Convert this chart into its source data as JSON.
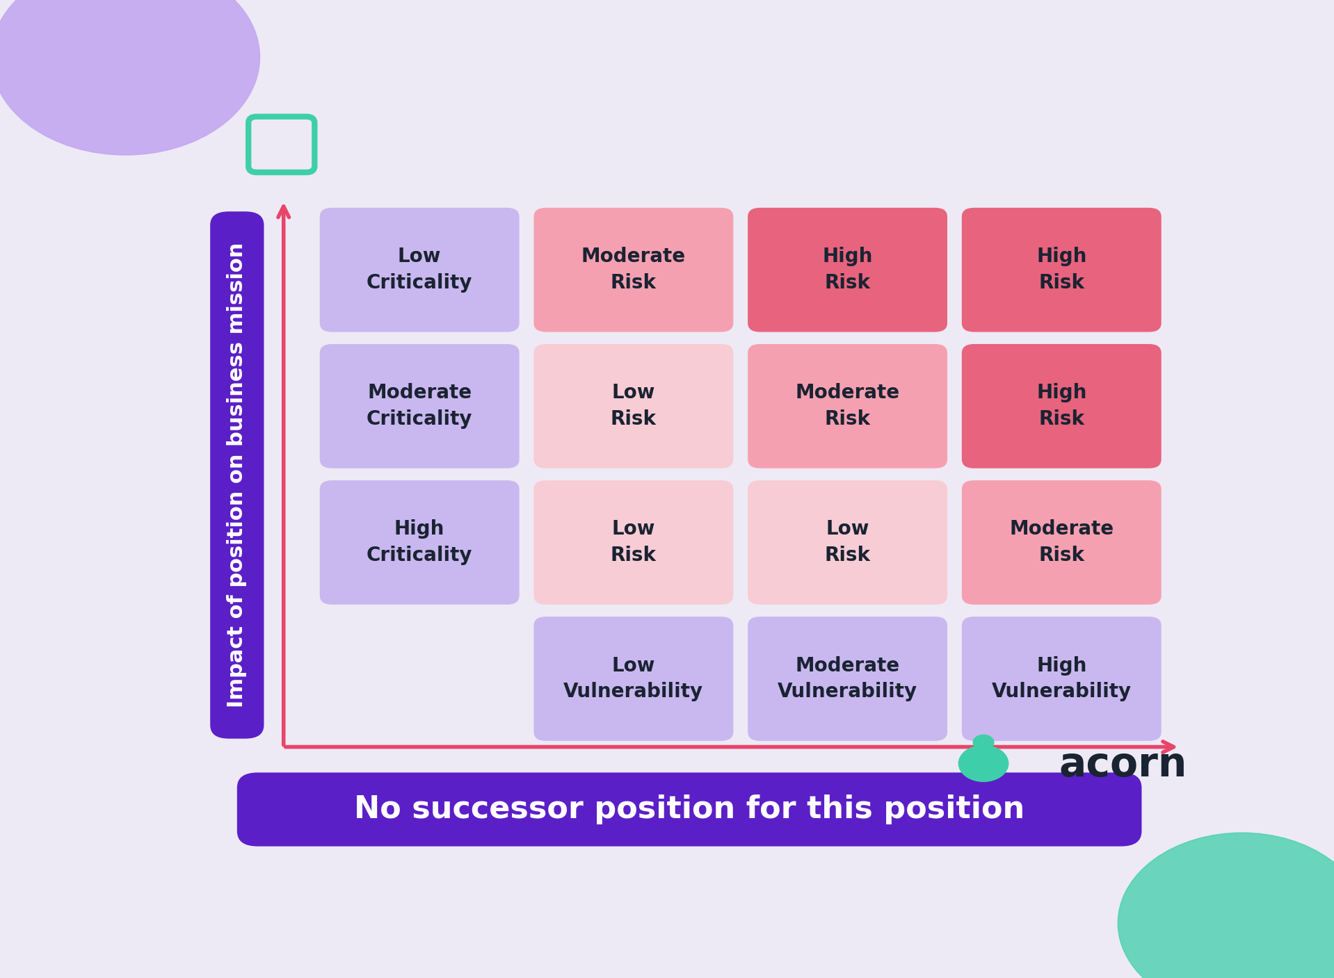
{
  "background_color": "#edeaf5",
  "title_bar_color": "#5b1fc8",
  "title_bar_text": "No successor position for this position",
  "title_bar_text_color": "#ffffff",
  "y_axis_label": "Impact of position on business mission",
  "arrow_color": "#e8456a",
  "purple_circle_color": "#c3a8f0",
  "teal_shape_color": "#3ecfaa",
  "acorn_text_color": "#1a2332",
  "acorn_icon_color": "#3ecfaa",
  "cells": [
    {
      "row": 0,
      "col": 0,
      "text": "Low\nCriticality",
      "color": "#c9b8ef",
      "text_color": "#1a2332"
    },
    {
      "row": 0,
      "col": 1,
      "text": "Moderate\nRisk",
      "color": "#f5a0b0",
      "text_color": "#1a2332"
    },
    {
      "row": 0,
      "col": 2,
      "text": "High\nRisk",
      "color": "#e8637d",
      "text_color": "#1a2332"
    },
    {
      "row": 0,
      "col": 3,
      "text": "High\nRisk",
      "color": "#e8637d",
      "text_color": "#1a2332"
    },
    {
      "row": 1,
      "col": 0,
      "text": "Moderate\nCriticality",
      "color": "#c9b8ef",
      "text_color": "#1a2332"
    },
    {
      "row": 1,
      "col": 1,
      "text": "Low\nRisk",
      "color": "#f8ccd4",
      "text_color": "#1a2332"
    },
    {
      "row": 1,
      "col": 2,
      "text": "Moderate\nRisk",
      "color": "#f5a0b0",
      "text_color": "#1a2332"
    },
    {
      "row": 1,
      "col": 3,
      "text": "High\nRisk",
      "color": "#e8637d",
      "text_color": "#1a2332"
    },
    {
      "row": 2,
      "col": 0,
      "text": "High\nCriticality",
      "color": "#c9b8ef",
      "text_color": "#1a2332"
    },
    {
      "row": 2,
      "col": 1,
      "text": "Low\nRisk",
      "color": "#f8ccd4",
      "text_color": "#1a2332"
    },
    {
      "row": 2,
      "col": 2,
      "text": "Low\nRisk",
      "color": "#f8ccd4",
      "text_color": "#1a2332"
    },
    {
      "row": 2,
      "col": 3,
      "text": "Moderate\nRisk",
      "color": "#f5a0b0",
      "text_color": "#1a2332"
    }
  ],
  "bottom_labels": [
    {
      "col": 1,
      "text": "Low\nVulnerability",
      "color": "#c9b8ef",
      "text_color": "#1a2332"
    },
    {
      "col": 2,
      "text": "Moderate\nVulnerability",
      "color": "#c9b8ef",
      "text_color": "#1a2332"
    },
    {
      "col": 3,
      "text": "High\nVulnerability",
      "color": "#c9b8ef",
      "text_color": "#1a2332"
    }
  ],
  "font_size_cell": 20,
  "font_size_title": 32,
  "font_size_ylabel": 22,
  "font_size_acorn": 42
}
